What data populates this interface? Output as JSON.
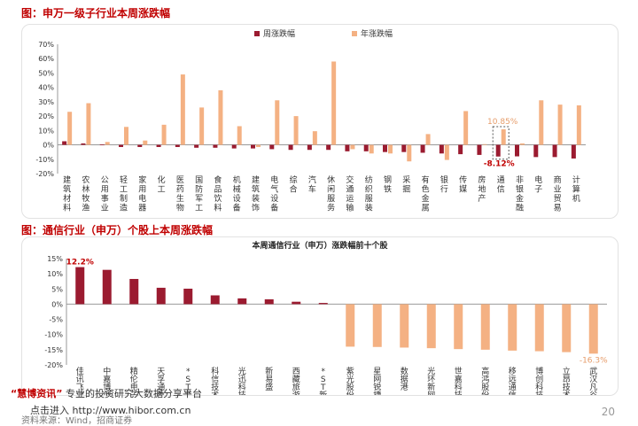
{
  "headings": {
    "chart1": "图：申万一级子行业本周涨跌幅",
    "chart2": "图：通信行业（申万）个股上本周涨跌幅"
  },
  "footer": {
    "watermark_brand": "“慧博资讯”",
    "watermark_text": "专业的投资研究大数据分享平台",
    "url": "点击进入 http://www.hibor.com.cn",
    "source": "资料来源：Wind，招商证券",
    "page": "20"
  },
  "colors": {
    "week": "#9b1b30",
    "year": "#f4b183",
    "highlight": "#c00000",
    "year_label": "#e69c6a"
  },
  "chart_data": [
    {
      "type": "bar",
      "title": "",
      "categories": [
        "建筑材料",
        "农林牧渔",
        "公用事业",
        "轻工制造",
        "家用电器",
        "化工",
        "医药生物",
        "国防军工",
        "食品饮料",
        "机械设备",
        "建筑装饰",
        "电气设备",
        "综合",
        "汽车",
        "休闲服务",
        "交通运输",
        "纺织服装",
        "钢铁",
        "采掘",
        "有色金属",
        "银行",
        "传媒",
        "房地产",
        "通信",
        "非银金融",
        "电子",
        "商业贸易",
        "计算机"
      ],
      "series": [
        {
          "name": "周涨跌幅",
          "values": [
            2.5,
            1.0,
            0.3,
            -1.5,
            -1.5,
            -1.5,
            -1.5,
            -2.0,
            -2.0,
            -2.5,
            -2.5,
            -3.0,
            -3.5,
            -3.5,
            -3.5,
            -4.5,
            -4.5,
            -5.0,
            -5.0,
            -5.5,
            -6.0,
            -6.5,
            -7.0,
            -8.12,
            -8.0,
            -8.5,
            -8.5,
            -9.5
          ]
        },
        {
          "name": "年涨跌幅",
          "values": [
            23.0,
            29.0,
            2.0,
            12.5,
            3.0,
            14.0,
            49.0,
            26.0,
            38.0,
            13.0,
            -1.5,
            31.0,
            20.0,
            9.5,
            58.0,
            -3.0,
            -6.0,
            -6.0,
            -11.5,
            7.5,
            -10.5,
            23.5,
            0.5,
            10.85,
            1.0,
            31.0,
            28.0,
            27.5
          ]
        }
      ],
      "ylim": [
        -20,
        70
      ],
      "ytick_values": [
        -20,
        -10,
        0,
        10,
        20,
        30,
        40,
        50,
        60,
        70
      ],
      "ytick_labels": [
        "-20%",
        "-10%",
        "0%",
        "10%",
        "20%",
        "30%",
        "40%",
        "50%",
        "60%",
        "70%"
      ],
      "annotations": [
        "10.85%",
        "-8.12%"
      ],
      "highlight_category": "通信",
      "legend": "top-center",
      "grid": false
    },
    {
      "type": "bar",
      "title": "本周通信行业（申万）涨跌幅前十个股",
      "categories": [
        "佳讯飞鸿",
        "中嘉博创",
        "精伦电子",
        "天孚通信",
        "*ST高升",
        "科信技术",
        "光迅科技",
        "新易盛",
        "西藏旅游",
        "*ST新海",
        "紫光股份",
        "星网锐捷",
        "数据港",
        "光环新网",
        "世嘉科技",
        "高鸿股份",
        "移远通信",
        "博创科技",
        "立昂技术",
        "武汉凡谷"
      ],
      "values": [
        12.2,
        11.3,
        8.3,
        5.4,
        5.1,
        2.9,
        1.9,
        1.6,
        0.8,
        0.4,
        -14.0,
        -14.1,
        -14.3,
        -14.5,
        -14.8,
        -15.0,
        -15.3,
        -15.5,
        -15.8,
        -16.3
      ],
      "ylim": [
        -20,
        15
      ],
      "ytick_values": [
        -20,
        -15,
        -10,
        -5,
        0,
        5,
        10,
        15
      ],
      "ytick_labels": [
        "-20%",
        "-15%",
        "-10%",
        "-5%",
        "0%",
        "5%",
        "10%",
        "15%"
      ],
      "annotations": [
        "12.2%",
        "-16.3%"
      ],
      "legend": "none",
      "grid": false
    }
  ]
}
